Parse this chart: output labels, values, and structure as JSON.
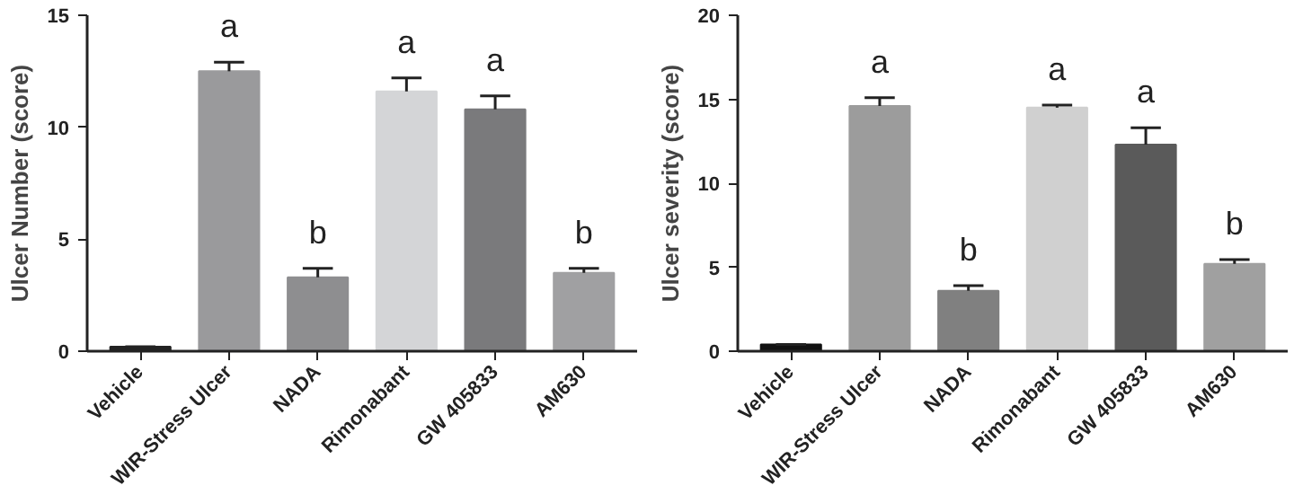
{
  "chart_data": [
    {
      "type": "bar",
      "ylabel": "Ulcer Number (score)",
      "categories": [
        "Vehicle",
        "WIR-Stress Ulcer",
        "NADA",
        "Rimonabant",
        "GW 405833",
        "AM630"
      ],
      "values": [
        0.2,
        12.5,
        3.3,
        11.6,
        10.8,
        3.5
      ],
      "colors": [
        "#222222",
        "#9a9a9c",
        "#8e8e90",
        "#d4d5d7",
        "#7a7a7c",
        "#a0a0a2"
      ],
      "errors": [
        [
          0.2,
          0.2
        ],
        [
          12.5,
          12.9
        ],
        [
          3.3,
          3.7
        ],
        [
          11.6,
          12.2
        ],
        [
          10.8,
          11.4
        ],
        [
          3.5,
          3.7
        ]
      ],
      "value_labels": [
        null,
        "a",
        "b",
        "a",
        "a",
        "b"
      ],
      "ylim": [
        0,
        15
      ],
      "yticks": [
        0,
        5,
        10,
        15
      ],
      "grid": false
    },
    {
      "type": "bar",
      "ylabel": "Ulcer severity (score)",
      "categories": [
        "Vehicle",
        "WIR-Stress Ulcer",
        "NADA",
        "Rimonabant",
        "GW 405833",
        "AM630"
      ],
      "values": [
        0.4,
        14.6,
        3.6,
        14.5,
        12.3,
        5.2
      ],
      "colors": [
        "#111111",
        "#9c9c9c",
        "#808080",
        "#d0d0d0",
        "#5a5a5a",
        "#a0a0a0"
      ],
      "errors": [
        [
          0.4,
          0.4
        ],
        [
          14.6,
          15.1
        ],
        [
          3.6,
          3.9
        ],
        [
          14.5,
          14.65
        ],
        [
          12.3,
          13.3
        ],
        [
          5.2,
          5.45
        ]
      ],
      "value_labels": [
        null,
        "a",
        "b",
        "a",
        "a",
        "b"
      ],
      "ylim": [
        0,
        20
      ],
      "yticks": [
        0,
        5,
        10,
        15,
        20
      ],
      "grid": false
    }
  ]
}
